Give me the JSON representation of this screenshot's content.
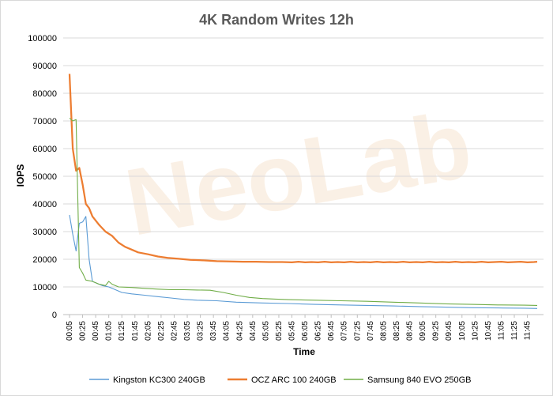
{
  "chart_data": {
    "type": "line",
    "title": "4K Random Writes 12h",
    "xlabel": "Time",
    "ylabel": "IOPS",
    "ylim": [
      0,
      100000
    ],
    "yticks": [
      0,
      10000,
      20000,
      30000,
      40000,
      50000,
      60000,
      70000,
      80000,
      90000,
      100000
    ],
    "x_range_minutes": [
      5,
      720
    ],
    "xticks": [
      "00:05",
      "00:25",
      "00:45",
      "01:05",
      "01:25",
      "01:45",
      "02:05",
      "02:25",
      "02:45",
      "03:05",
      "03:25",
      "03:45",
      "04:05",
      "04:25",
      "04:45",
      "05:05",
      "05:25",
      "05:45",
      "06:05",
      "06:25",
      "06:45",
      "07:05",
      "07:25",
      "07:45",
      "08:05",
      "08:25",
      "08:45",
      "09:05",
      "09:25",
      "09:45",
      "10:05",
      "10:25",
      "10:45",
      "11:05",
      "11:25",
      "11:45"
    ],
    "grid": true,
    "legend_position": "bottom",
    "watermark": "NeoLab",
    "series": [
      {
        "name": "Kingston KC300 240GB",
        "color": "#5b9bd5",
        "points": [
          [
            5,
            36000
          ],
          [
            10,
            29000
          ],
          [
            15,
            23000
          ],
          [
            20,
            33000
          ],
          [
            25,
            33500
          ],
          [
            30,
            35500
          ],
          [
            35,
            20000
          ],
          [
            40,
            12000
          ],
          [
            45,
            11500
          ],
          [
            55,
            10500
          ],
          [
            65,
            10000
          ],
          [
            75,
            9000
          ],
          [
            85,
            8000
          ],
          [
            100,
            7500
          ],
          [
            120,
            7000
          ],
          [
            140,
            6500
          ],
          [
            160,
            6000
          ],
          [
            180,
            5500
          ],
          [
            200,
            5200
          ],
          [
            230,
            5000
          ],
          [
            260,
            4500
          ],
          [
            300,
            4200
          ],
          [
            340,
            4000
          ],
          [
            380,
            3700
          ],
          [
            420,
            3500
          ],
          [
            460,
            3300
          ],
          [
            500,
            3100
          ],
          [
            540,
            2900
          ],
          [
            580,
            2700
          ],
          [
            620,
            2500
          ],
          [
            660,
            2400
          ],
          [
            700,
            2300
          ],
          [
            720,
            2200
          ]
        ]
      },
      {
        "name": "OCZ ARC 100 240GB",
        "color": "#ed7d31",
        "points": [
          [
            5,
            87000
          ],
          [
            10,
            60000
          ],
          [
            15,
            52000
          ],
          [
            20,
            53000
          ],
          [
            25,
            47000
          ],
          [
            30,
            40000
          ],
          [
            35,
            38500
          ],
          [
            40,
            35500
          ],
          [
            50,
            32500
          ],
          [
            60,
            30000
          ],
          [
            70,
            28500
          ],
          [
            80,
            26000
          ],
          [
            90,
            24500
          ],
          [
            100,
            23500
          ],
          [
            110,
            22500
          ],
          [
            125,
            21800
          ],
          [
            140,
            21000
          ],
          [
            155,
            20500
          ],
          [
            170,
            20200
          ],
          [
            190,
            19800
          ],
          [
            210,
            19600
          ],
          [
            230,
            19300
          ],
          [
            250,
            19200
          ],
          [
            270,
            19100
          ],
          [
            290,
            19100
          ],
          [
            310,
            19000
          ],
          [
            330,
            19000
          ],
          [
            345,
            18900
          ],
          [
            355,
            19100
          ],
          [
            365,
            18900
          ],
          [
            375,
            19000
          ],
          [
            385,
            18900
          ],
          [
            395,
            19100
          ],
          [
            405,
            18900
          ],
          [
            415,
            19000
          ],
          [
            425,
            18900
          ],
          [
            435,
            19100
          ],
          [
            445,
            18900
          ],
          [
            455,
            19000
          ],
          [
            465,
            18900
          ],
          [
            475,
            19100
          ],
          [
            485,
            18900
          ],
          [
            495,
            19000
          ],
          [
            505,
            18900
          ],
          [
            515,
            19100
          ],
          [
            525,
            18900
          ],
          [
            535,
            19000
          ],
          [
            545,
            18900
          ],
          [
            555,
            19100
          ],
          [
            565,
            18900
          ],
          [
            575,
            19000
          ],
          [
            585,
            18900
          ],
          [
            595,
            19100
          ],
          [
            605,
            18900
          ],
          [
            615,
            19000
          ],
          [
            625,
            18900
          ],
          [
            635,
            19100
          ],
          [
            645,
            18900
          ],
          [
            655,
            19000
          ],
          [
            665,
            19100
          ],
          [
            675,
            18900
          ],
          [
            685,
            19000
          ],
          [
            695,
            19100
          ],
          [
            705,
            18900
          ],
          [
            715,
            19000
          ],
          [
            720,
            19100
          ]
        ]
      },
      {
        "name": "Samsung 840 EVO 250GB",
        "color": "#70ad47",
        "points": [
          [
            5,
            71000
          ],
          [
            10,
            70000
          ],
          [
            15,
            70500
          ],
          [
            20,
            17000
          ],
          [
            25,
            15000
          ],
          [
            30,
            12500
          ],
          [
            40,
            12000
          ],
          [
            50,
            11000
          ],
          [
            60,
            10500
          ],
          [
            65,
            12000
          ],
          [
            70,
            11000
          ],
          [
            80,
            10000
          ],
          [
            100,
            9800
          ],
          [
            120,
            9500
          ],
          [
            140,
            9200
          ],
          [
            160,
            9000
          ],
          [
            180,
            9000
          ],
          [
            200,
            8900
          ],
          [
            220,
            8800
          ],
          [
            240,
            8000
          ],
          [
            260,
            7000
          ],
          [
            280,
            6200
          ],
          [
            300,
            5800
          ],
          [
            320,
            5600
          ],
          [
            340,
            5400
          ],
          [
            380,
            5200
          ],
          [
            420,
            5000
          ],
          [
            460,
            4800
          ],
          [
            500,
            4500
          ],
          [
            540,
            4200
          ],
          [
            580,
            3900
          ],
          [
            620,
            3700
          ],
          [
            660,
            3500
          ],
          [
            700,
            3400
          ],
          [
            720,
            3300
          ]
        ]
      }
    ]
  }
}
